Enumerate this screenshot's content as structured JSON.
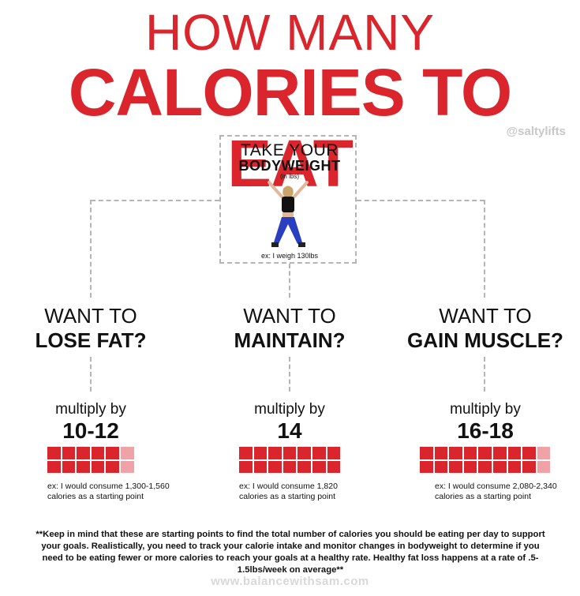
{
  "title": {
    "line1": "HOW MANY",
    "line2": "CALORIES TO EAT"
  },
  "handle": "@saltylifts",
  "center": {
    "line1": "TAKE YOUR",
    "line2": "BODYWEIGHT",
    "line3": "(in lbs)",
    "example": "ex: I weigh 130lbs"
  },
  "columns": [
    {
      "want": "WANT TO",
      "goal": "LOSE FAT?",
      "multiply": "multiply by",
      "factor": "10-12",
      "example_line1": "ex: I would consume 1,300-1,560",
      "example_line2": "calories as a starting point",
      "blocks": {
        "solid": 10,
        "light": 2
      }
    },
    {
      "want": "WANT TO",
      "goal": "MAINTAIN?",
      "multiply": "multiply by",
      "factor": "14",
      "example_line1": "ex: I would consume 1,820",
      "example_line2": "calories as a starting point",
      "blocks": {
        "solid": 14,
        "light": 0
      }
    },
    {
      "want": "WANT TO",
      "goal": "GAIN MUSCLE?",
      "multiply": "multiply by",
      "factor": "16-18",
      "example_line1": "ex: I would consume 2,080-2,340",
      "example_line2": "calories as a starting point",
      "blocks": {
        "solid": 16,
        "light": 2
      }
    }
  ],
  "footnote": "**Keep in mind that these are starting points to find the total number of calories you should be eating per day to support your goals. Realistically, you need to track your calorie intake and monitor changes in bodyweight to determine if you need to be eating fewer or more calories to reach your goals at a healthy rate. Healthy fat loss happens at a rate of .5-1.5lbs/week on average**",
  "url": "www.balancewithsam.com",
  "colors": {
    "accent": "#d9252b",
    "accent_light": "#f0a3a6",
    "dashes": "#b5b5b5"
  }
}
